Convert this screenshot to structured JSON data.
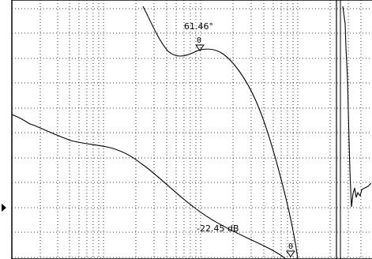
{
  "phase_marker": {
    "id": "0",
    "readout": "61.46°"
  },
  "gain_marker": {
    "id": "0",
    "readout": "-22.45 dB"
  },
  "reference_arrow": "reference-level-arrow"
}
